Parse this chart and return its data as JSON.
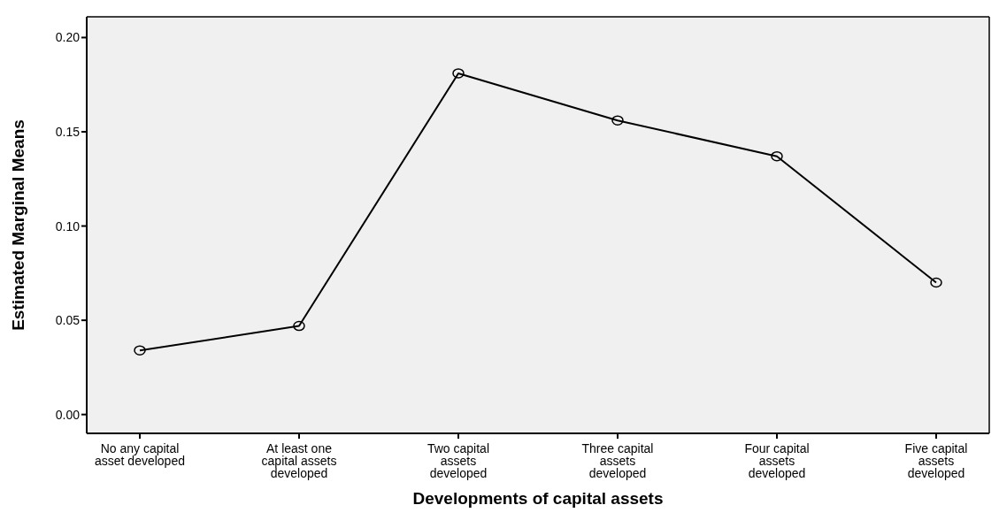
{
  "chart_data": {
    "type": "line",
    "xlabel": "Developments of capital assets",
    "ylabel": "Estimated Marginal Means",
    "categories": [
      "No any capital asset developed",
      "At least one capital assets developed",
      "Two capital assets developed",
      "Three capital assets developed",
      "Four capital assets developed",
      "Five capital assets developed"
    ],
    "series": [
      {
        "color": "#000000",
        "values": [
          0.034,
          0.047,
          0.181,
          0.156,
          0.137,
          0.07
        ]
      }
    ],
    "ylim": [
      -0.01,
      0.211
    ],
    "yticks": [
      {
        "value": 0,
        "label": "0.00"
      },
      {
        "value": 0.05,
        "label": "0.05"
      },
      {
        "value": 0.1,
        "label": "0.10"
      },
      {
        "value": 0.15,
        "label": "0.15"
      },
      {
        "value": 0.2,
        "label": "0.20"
      }
    ],
    "grid": false,
    "legend": false,
    "marker": "circle",
    "line_style": "solid"
  }
}
